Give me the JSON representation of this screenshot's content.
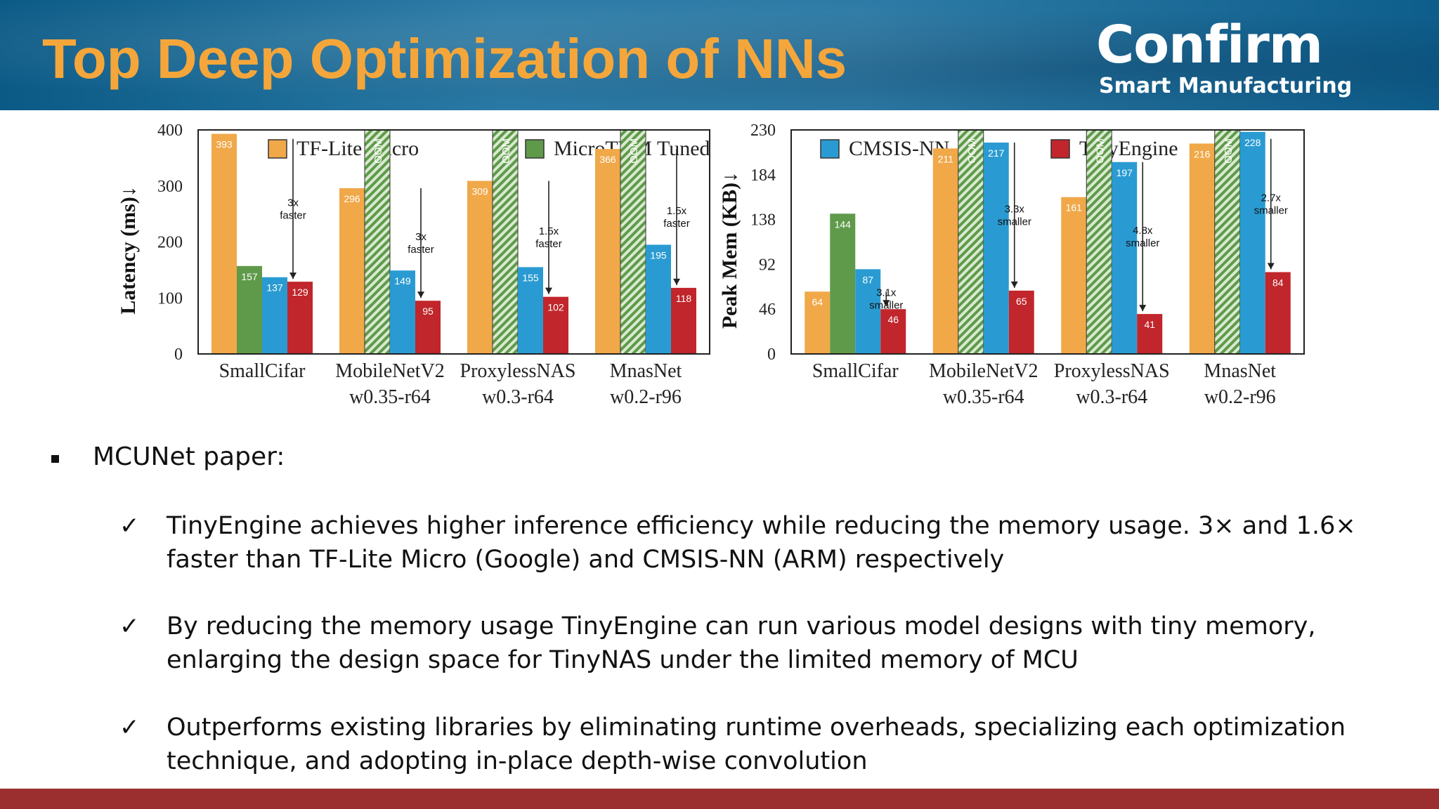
{
  "header": {
    "title": "Top Deep Optimization of NNs",
    "logo_name": "Confirm",
    "logo_tagline": "Smart Manufacturing",
    "title_color": "#f5a63b"
  },
  "legend": [
    "TF-Lite Micro",
    "MicroTVM Tuned",
    "CMSIS-NN",
    "TinyEngine"
  ],
  "colors": {
    "TF-Lite Micro": "#f0a849",
    "MicroTVM Tuned": "#5f9a4a",
    "CMSIS-NN": "#2a9bd2",
    "TinyEngine": "#c0262b",
    "footer": "#9b2f2f"
  },
  "chart_data": [
    {
      "type": "bar",
      "ylabel": "Latency (ms)↓",
      "ylim": [
        0,
        400
      ],
      "yticks": [
        "0",
        "100",
        "200",
        "300",
        "400"
      ],
      "categories": [
        [
          "SmallCifar"
        ],
        [
          "MobileNetV2",
          "w0.35-r64"
        ],
        [
          "ProxylessNAS",
          "w0.3-r64"
        ],
        [
          "MnasNet",
          "w0.2-r96"
        ]
      ],
      "series": [
        {
          "name": "TF-Lite Micro",
          "values": [
            393,
            296,
            309,
            366
          ],
          "labels": [
            "393",
            "296",
            "309",
            "366"
          ]
        },
        {
          "name": "MicroTVM Tuned",
          "values": [
            157,
            400,
            400,
            400
          ],
          "labels": [
            "157",
            "OOM",
            "OOM",
            "OOM"
          ]
        },
        {
          "name": "CMSIS-NN",
          "values": [
            137,
            149,
            155,
            195
          ],
          "labels": [
            "137",
            "149",
            "155",
            "195"
          ]
        },
        {
          "name": "TinyEngine",
          "values": [
            129,
            95,
            102,
            118
          ],
          "labels": [
            "129",
            "95",
            "102",
            "118"
          ]
        }
      ],
      "annotations": [
        [
          "3x",
          "faster"
        ],
        [
          "3x",
          "faster"
        ],
        [
          "1.5x",
          "faster"
        ],
        [
          "1.5x",
          "faster"
        ]
      ],
      "grid": false
    },
    {
      "type": "bar",
      "ylabel": "Peak Mem (KB)↓",
      "ylim": [
        0,
        230
      ],
      "yticks": [
        "0",
        "46",
        "92",
        "138",
        "184",
        "230"
      ],
      "categories": [
        [
          "SmallCifar"
        ],
        [
          "MobileNetV2",
          "w0.35-r64"
        ],
        [
          "ProxylessNAS",
          "w0.3-r64"
        ],
        [
          "MnasNet",
          "w0.2-r96"
        ]
      ],
      "series": [
        {
          "name": "TF-Lite Micro",
          "values": [
            64,
            211,
            161,
            216
          ],
          "labels": [
            "64",
            "211",
            "161",
            "216"
          ]
        },
        {
          "name": "MicroTVM Tuned",
          "values": [
            144,
            230,
            230,
            230
          ],
          "labels": [
            "144",
            "OOM",
            "OOM",
            "OOM"
          ]
        },
        {
          "name": "CMSIS-NN",
          "values": [
            87,
            217,
            197,
            228
          ],
          "labels": [
            "87",
            "217",
            "197",
            "228"
          ]
        },
        {
          "name": "TinyEngine",
          "values": [
            46,
            65,
            41,
            84
          ],
          "labels": [
            "46",
            "65",
            "41",
            "84"
          ]
        }
      ],
      "annotations": [
        [
          "3.1x",
          "smaller"
        ],
        [
          "3.3x",
          "smaller"
        ],
        [
          "4.8x",
          "smaller"
        ],
        [
          "2.7x",
          "smaller"
        ]
      ],
      "grid": false
    }
  ],
  "content": {
    "main_bullet": "MCUNet paper:",
    "items": [
      "TinyEngine achieves higher inference efficiency while reducing the memory usage. 3× and 1.6× faster than TF-Lite Micro (Google) and CMSIS-NN (ARM) respectively",
      "By reducing the memory usage TinyEngine can run various model designs with tiny memory, enlarging the design space for TinyNAS under the limited memory of MCU",
      "Outperforms existing libraries by eliminating runtime overheads, specializing each optimization technique, and adopting in-place depth-wise convolution"
    ],
    "check_symbol": "✓"
  }
}
